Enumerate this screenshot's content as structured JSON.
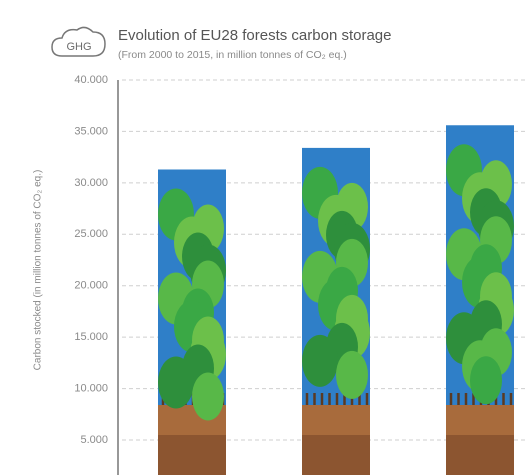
{
  "chart_data": {
    "type": "bar",
    "icon_label": "GHG",
    "title": "Evolution of EU28 forests carbon storage",
    "subtitle": "(From 2000 to 2015, in million tonnes of CO₂ eq.)",
    "y_label": "Carbon stocked (in million tonnes of CO₂ eq.)",
    "categories": [
      null,
      null,
      null
    ],
    "values": [
      31300,
      33400,
      35600
    ],
    "color": "#2f7fc8",
    "ylim": [
      1600,
      40000
    ],
    "yticks": [
      {
        "value": 5000,
        "label": "5.000"
      },
      {
        "value": 10000,
        "label": "10.000"
      },
      {
        "value": 15000,
        "label": "15.000"
      },
      {
        "value": 20000,
        "label": "20.000"
      },
      {
        "value": 25000,
        "label": "25.000"
      },
      {
        "value": 30000,
        "label": "30.000"
      },
      {
        "value": 35000,
        "label": "35.000"
      },
      {
        "value": 40000,
        "label": "40.000"
      }
    ],
    "grid": true
  }
}
